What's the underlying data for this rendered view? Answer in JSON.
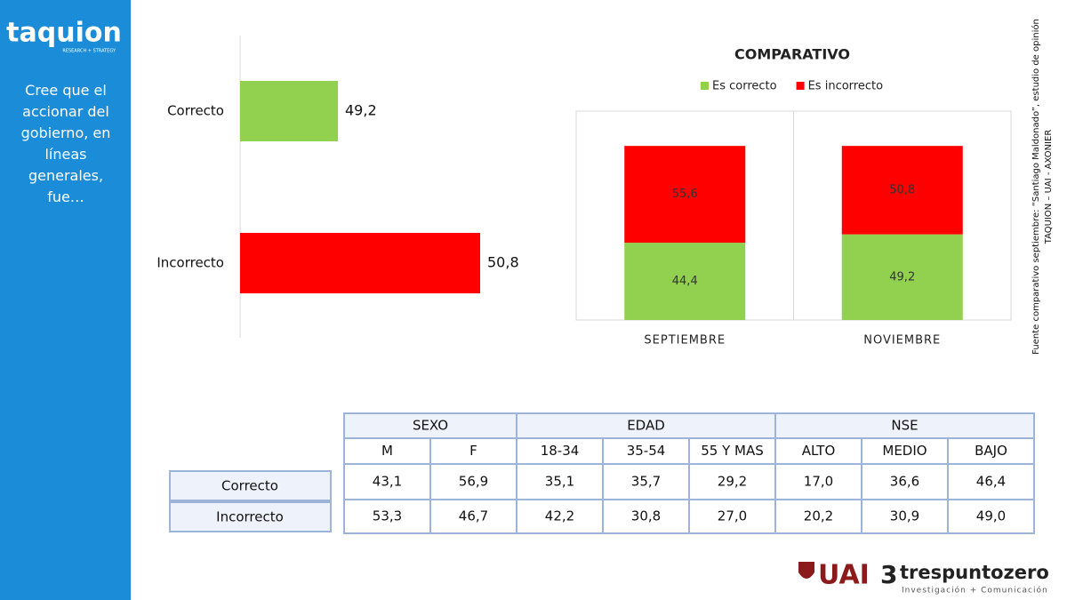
{
  "sidebar": {
    "logo": "taquion",
    "logo_tagline": "RESEARCH + STRATEGY",
    "question": "Cree que el accionar del gobierno, en líneas generales, fue…"
  },
  "chart_data": [
    {
      "type": "hbar",
      "categories": [
        "Correcto",
        "Incorrecto"
      ],
      "values": [
        49.2,
        50.8
      ],
      "value_labels": [
        "49,2",
        "50,8"
      ],
      "colors": [
        "#92d050",
        "#ff0000"
      ],
      "xlim": [
        48.1,
        51.5
      ]
    },
    {
      "type": "stacked_bar",
      "title": "COMPARATIVO",
      "categories": [
        "SEPTIEMBRE",
        "NOVIEMBRE"
      ],
      "series": [
        {
          "name": "Es correcto",
          "color": "#92d050",
          "values": [
            44.4,
            49.2
          ],
          "value_labels": [
            "44,4",
            "49,2"
          ]
        },
        {
          "name": "Es incorrecto",
          "color": "#ff0000",
          "values": [
            55.6,
            50.8
          ],
          "value_labels": [
            "55,6",
            "50,8"
          ]
        }
      ],
      "ylim": [
        0,
        120
      ],
      "legend": "top"
    }
  ],
  "source": {
    "line1": "Fuente comparativo septiembre: “Santiago Maldonado”, estudio de opinión",
    "line2": "TAQUION – UAI - AXONIER"
  },
  "table": {
    "groups": [
      {
        "label": "SEXO",
        "span": 2
      },
      {
        "label": "EDAD",
        "span": 3
      },
      {
        "label": "NSE",
        "span": 3
      }
    ],
    "columns": [
      "M",
      "F",
      "18-34",
      "35-54",
      "55 Y MAS",
      "ALTO",
      "MEDIO",
      "BAJO"
    ],
    "rows": [
      {
        "label": "Correcto",
        "cells": [
          "43,1",
          "56,9",
          "35,1",
          "35,7",
          "29,2",
          "17,0",
          "36,6",
          "46,4"
        ]
      },
      {
        "label": "Incorrecto",
        "cells": [
          "53,3",
          "46,7",
          "42,2",
          "30,8",
          "27,0",
          "20,2",
          "30,9",
          "49,0"
        ]
      }
    ]
  },
  "footer": {
    "uai": "UAI",
    "tres_mark": "3",
    "tres": "trespuntozero",
    "tres_tagline": "Investigación + Comunicación"
  }
}
